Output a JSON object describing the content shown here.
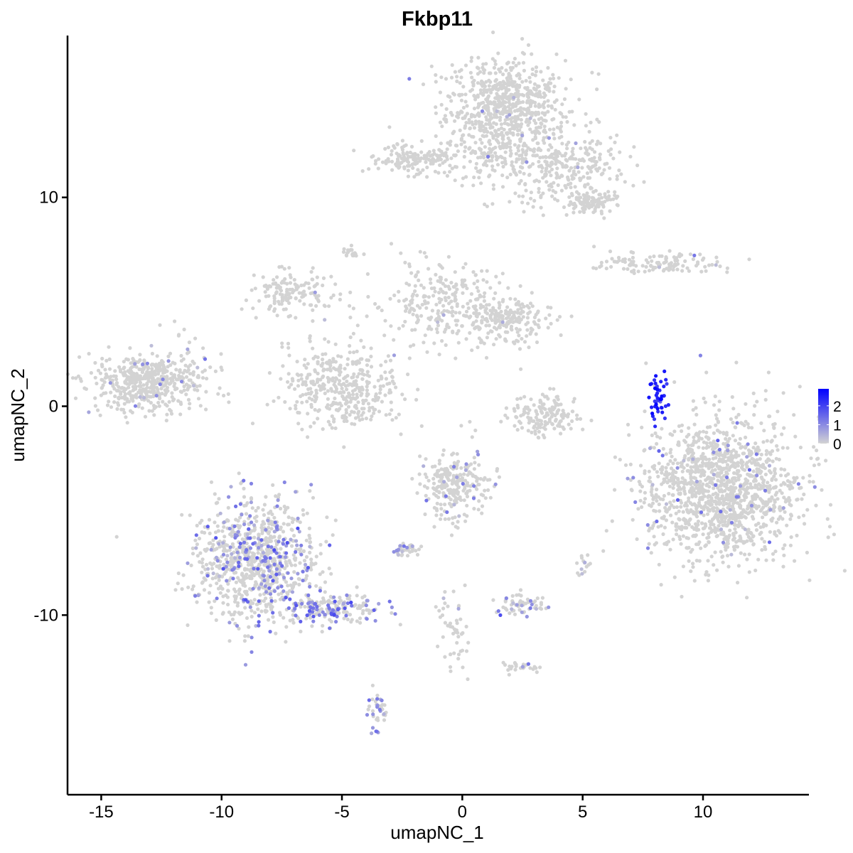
{
  "chart_data": {
    "type": "scatter",
    "title": "Fkbp11",
    "xlabel": "umapNC_1",
    "ylabel": "umapNC_2",
    "xlim": [
      -16.4,
      14.4
    ],
    "ylim": [
      -18.6,
      17.75
    ],
    "xticks": [
      -15,
      -10,
      -5,
      0,
      5,
      10
    ],
    "yticks": [
      -10,
      0,
      10
    ],
    "grid": false,
    "color_scale": {
      "low": "#D3D3D3",
      "high": "#0000FF",
      "min": 0,
      "max": 2.9,
      "ticks": [
        0,
        1,
        2
      ]
    },
    "legend_placement": "right",
    "clusters": [
      {
        "cx": 1.8,
        "cy": 14.3,
        "sx": 1.2,
        "sy": 1.1,
        "n": 700,
        "frac": 0.01,
        "expr": 0.8
      },
      {
        "cx": 4.1,
        "cy": 11.5,
        "sx": 1.4,
        "sy": 0.9,
        "n": 300,
        "frac": 0.01,
        "expr": 0.8
      },
      {
        "cx": 5.3,
        "cy": 9.7,
        "sx": 0.5,
        "sy": 0.3,
        "n": 100,
        "frac": 0,
        "expr": 0
      },
      {
        "cx": -2.1,
        "cy": 11.8,
        "sx": 0.8,
        "sy": 0.35,
        "n": 150,
        "frac": 0,
        "expr": 0
      },
      {
        "cx": 0.9,
        "cy": 11.9,
        "sx": 1.0,
        "sy": 0.5,
        "n": 100,
        "frac": 0,
        "expr": 0
      },
      {
        "cx": -13.0,
        "cy": 1.2,
        "sx": 1.2,
        "sy": 0.75,
        "n": 500,
        "frac": 0.02,
        "expr": 0.7
      },
      {
        "cx": -5.0,
        "cy": 0.9,
        "sx": 1.2,
        "sy": 1.0,
        "n": 400,
        "frac": 0,
        "expr": 0
      },
      {
        "cx": -7.1,
        "cy": 5.5,
        "sx": 0.9,
        "sy": 0.6,
        "n": 150,
        "frac": 0.02,
        "expr": 0.7
      },
      {
        "cx": -0.9,
        "cy": 4.8,
        "sx": 1.3,
        "sy": 1.0,
        "n": 250,
        "frac": 0.01,
        "expr": 0.7
      },
      {
        "cx": 1.8,
        "cy": 4.1,
        "sx": 1.0,
        "sy": 0.6,
        "n": 200,
        "frac": 0,
        "expr": 0
      },
      {
        "cx": 3.4,
        "cy": -0.4,
        "sx": 0.7,
        "sy": 0.5,
        "n": 150,
        "frac": 0,
        "expr": 0
      },
      {
        "cx": 10.8,
        "cy": -4.0,
        "sx": 1.6,
        "sy": 1.7,
        "n": 1400,
        "frac": 0.03,
        "expr": 0.9
      },
      {
        "cx": 8.3,
        "cy": 6.85,
        "sx": 1.2,
        "sy": 0.25,
        "n": 120,
        "frac": 0.03,
        "expr": 0.8
      },
      {
        "cx": 8.15,
        "cy": 0.5,
        "sx": 0.2,
        "sy": 0.6,
        "n": 45,
        "frac": 0.95,
        "expr": 2.4
      },
      {
        "cx": -8.6,
        "cy": -7.4,
        "sx": 1.2,
        "sy": 1.5,
        "n": 900,
        "frac": 0.2,
        "expr": 1.0
      },
      {
        "cx": -5.4,
        "cy": -9.7,
        "sx": 1.0,
        "sy": 0.35,
        "n": 200,
        "frac": 0.35,
        "expr": 1.2
      },
      {
        "cx": -0.3,
        "cy": -3.8,
        "sx": 0.7,
        "sy": 0.8,
        "n": 250,
        "frac": 0.05,
        "expr": 0.8
      },
      {
        "cx": -2.4,
        "cy": -6.9,
        "sx": 0.3,
        "sy": 0.15,
        "n": 40,
        "frac": 0.2,
        "expr": 0.8
      },
      {
        "cx": 2.4,
        "cy": -9.5,
        "sx": 0.5,
        "sy": 0.3,
        "n": 60,
        "frac": 0.25,
        "expr": 0.8
      },
      {
        "cx": -0.4,
        "cy": -11.0,
        "sx": 0.35,
        "sy": 1.0,
        "n": 50,
        "frac": 0.05,
        "expr": 0.7
      },
      {
        "cx": -3.5,
        "cy": -14.6,
        "sx": 0.2,
        "sy": 0.5,
        "n": 40,
        "frac": 0.4,
        "expr": 0.8
      },
      {
        "cx": -4.6,
        "cy": 7.4,
        "sx": 0.2,
        "sy": 0.2,
        "n": 20,
        "frac": 0,
        "expr": 0
      },
      {
        "cx": 2.4,
        "cy": -12.5,
        "sx": 0.4,
        "sy": 0.15,
        "n": 25,
        "frac": 0.1,
        "expr": 0.8
      },
      {
        "cx": 5.0,
        "cy": -7.5,
        "sx": 0.15,
        "sy": 0.3,
        "n": 15,
        "frac": 0.2,
        "expr": 0.7
      }
    ]
  }
}
